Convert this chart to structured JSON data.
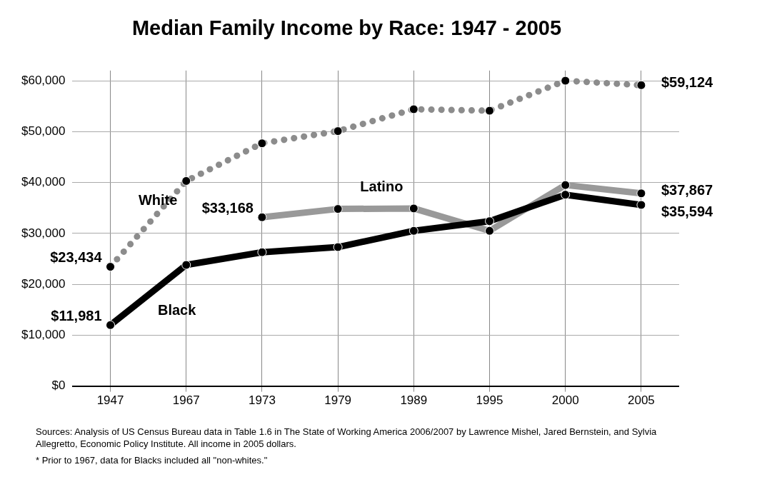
{
  "chart_data": {
    "type": "line",
    "title": "Median Family Income by Race: 1947 - 2005",
    "categories": [
      "1947",
      "1967",
      "1973",
      "1979",
      "1989",
      "1995",
      "2000",
      "2005"
    ],
    "series": [
      {
        "name": "White",
        "color": "#8c8c8c",
        "line_style": "dotted",
        "values": [
          23434,
          40300,
          47700,
          50100,
          54400,
          54100,
          60000,
          59124
        ],
        "value_labels": [
          "$23,434",
          null,
          null,
          null,
          null,
          null,
          null,
          "$59,124"
        ]
      },
      {
        "name": "Latino",
        "color": "#999999",
        "line_style": "solid",
        "values": [
          null,
          null,
          33168,
          34800,
          34900,
          30500,
          39500,
          37867
        ],
        "value_labels": [
          null,
          null,
          "$33,168",
          null,
          null,
          null,
          null,
          "$37,867"
        ]
      },
      {
        "name": "Black",
        "color": "#000000",
        "line_style": "solid",
        "values": [
          11981,
          23800,
          26300,
          27300,
          30500,
          32400,
          37600,
          35594
        ],
        "value_labels": [
          "$11,981",
          null,
          null,
          null,
          null,
          null,
          null,
          "$35,594"
        ]
      }
    ],
    "ylim": [
      0,
      62000
    ],
    "yticks": [
      {
        "value": 0,
        "label": "$0"
      },
      {
        "value": 10000,
        "label": "$10,000"
      },
      {
        "value": 20000,
        "label": "$20,000"
      },
      {
        "value": 30000,
        "label": "$30,000"
      },
      {
        "value": 40000,
        "label": "$40,000"
      },
      {
        "value": 50000,
        "label": "$50,000"
      },
      {
        "value": 60000,
        "label": "$60,000"
      }
    ],
    "grid": true,
    "legend": false,
    "marker": "circle",
    "annotations": [
      "Sources:  Analysis of US Census Bureau data in Table 1.6 in The State of Working America 2006/2007 by Lawrence Mishel, Jared Bernstein, and Sylvia Allegretto, Economic Policy Institute.  All income in 2005 dollars.",
      "* Prior to 1967, data for Blacks included all \"non-whites.\""
    ]
  }
}
